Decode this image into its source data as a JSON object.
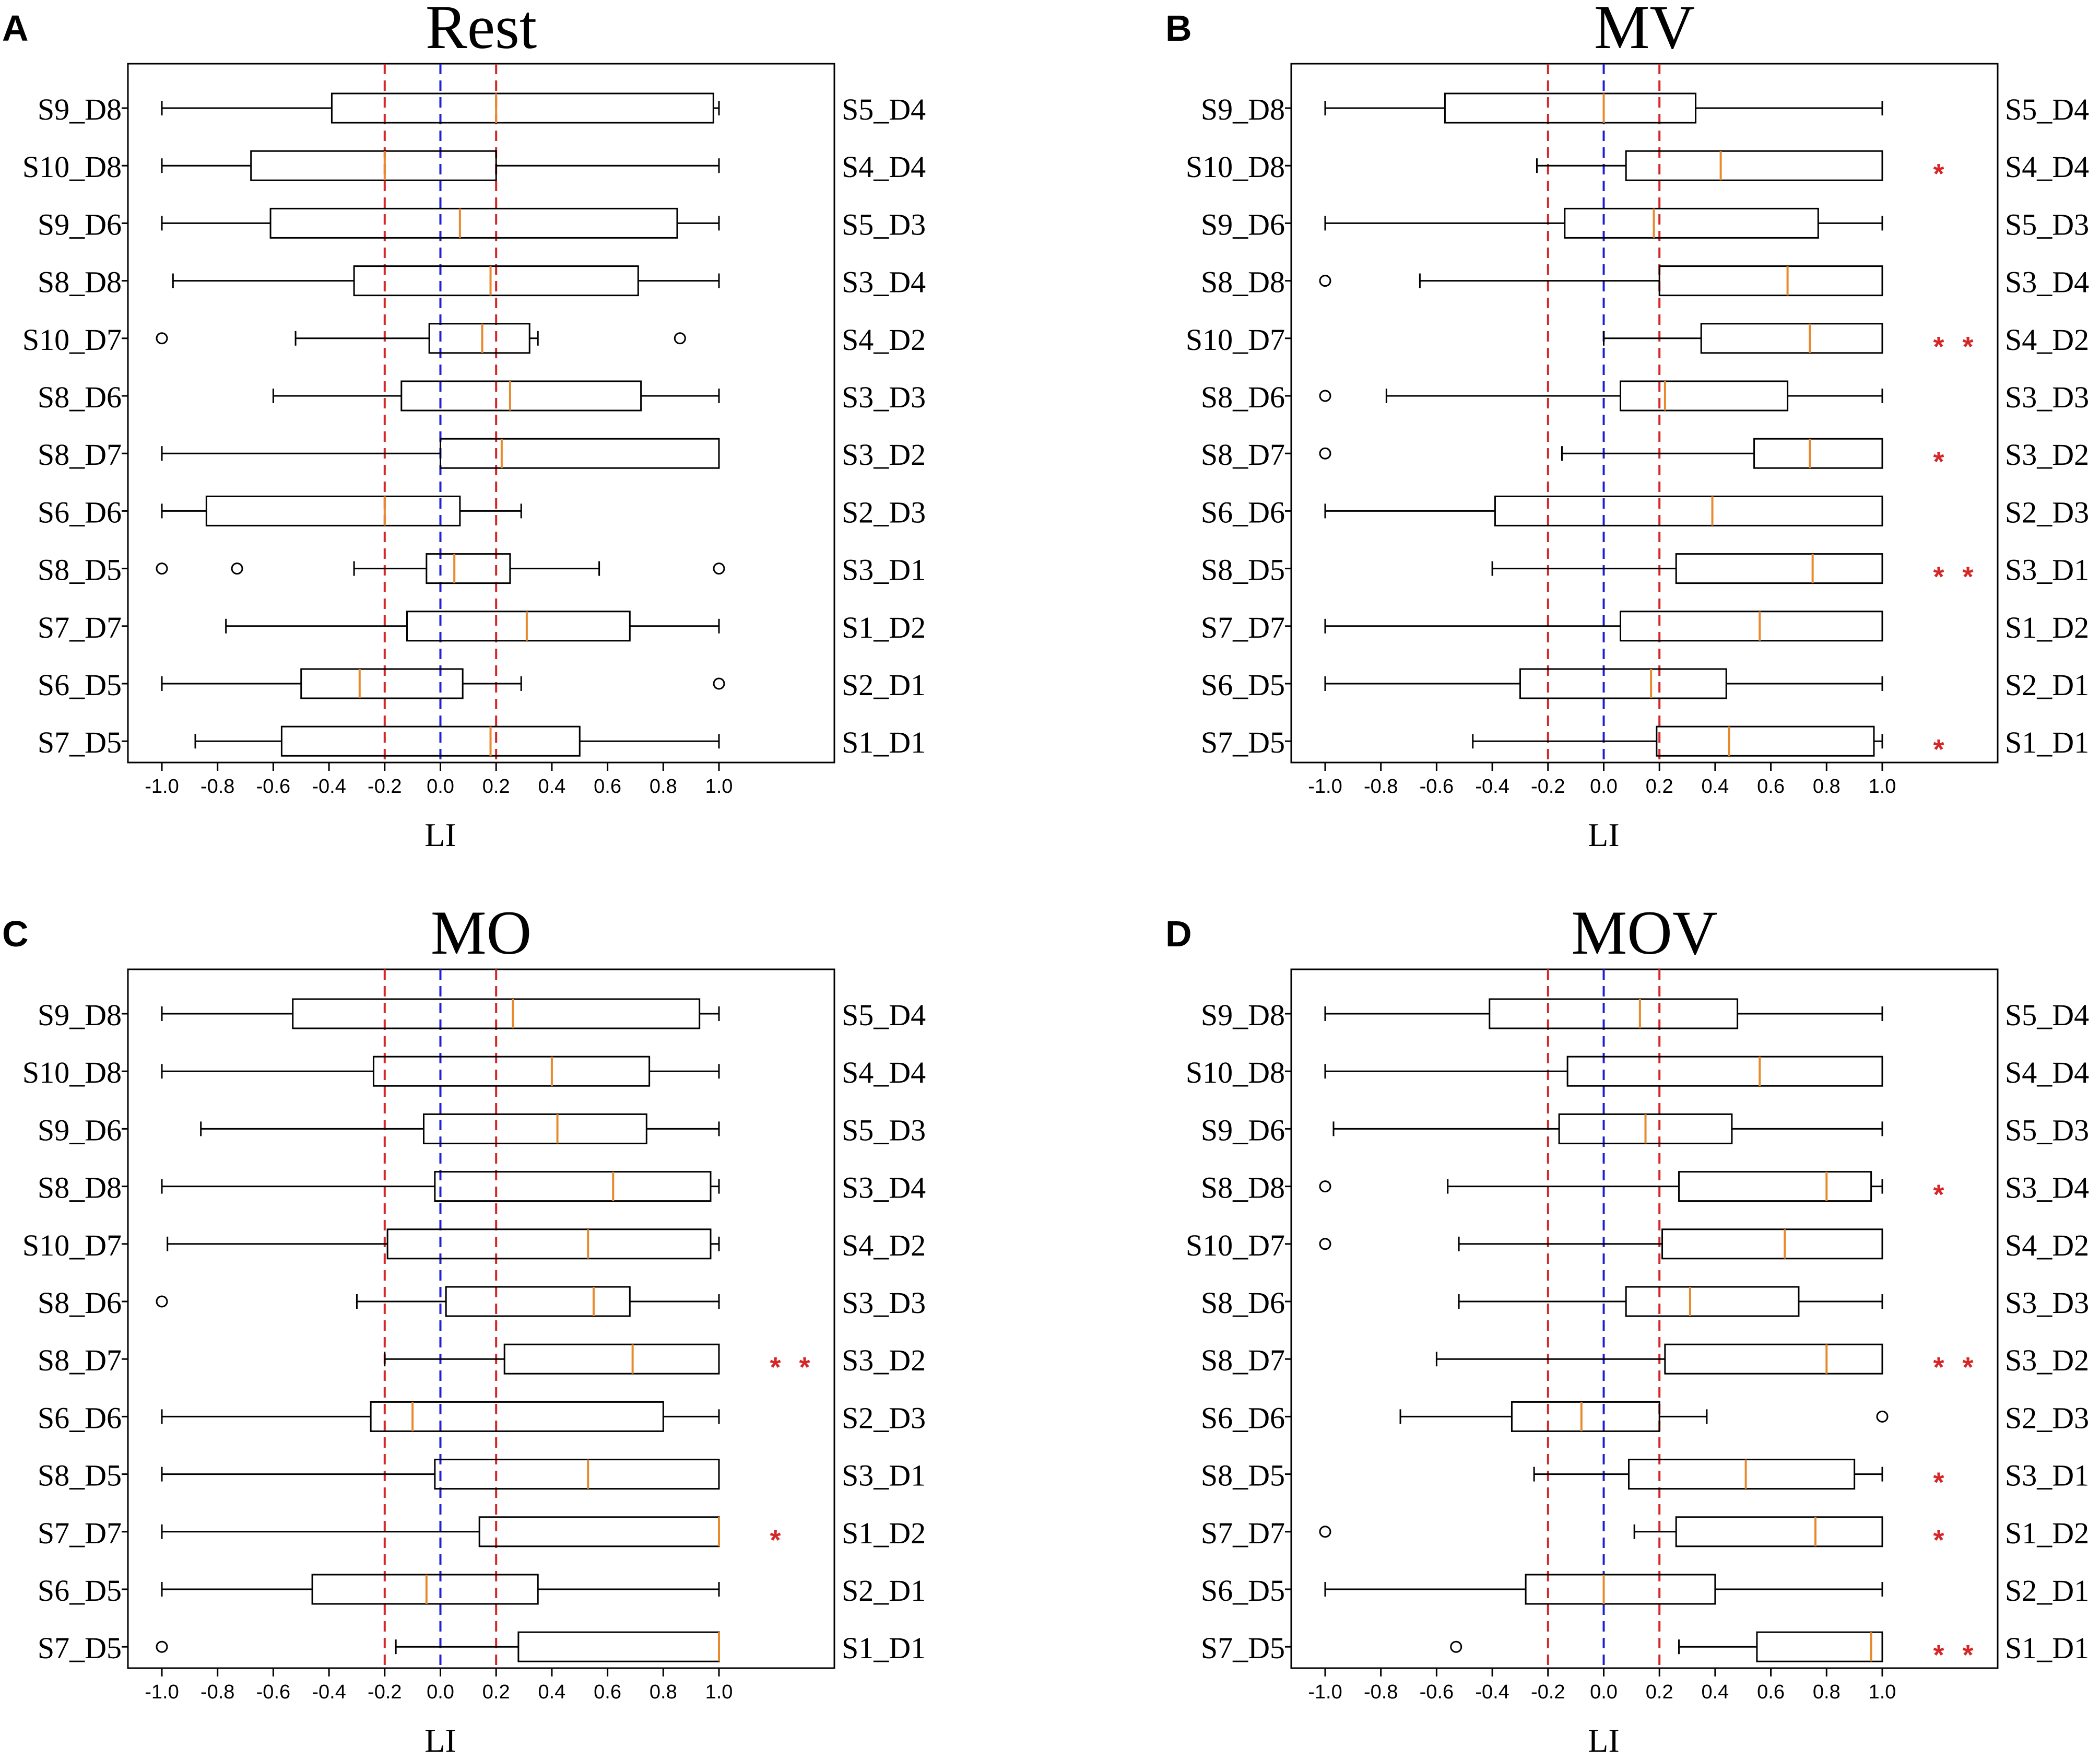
{
  "figure": {
    "colors": {
      "box": "#000000",
      "median": "#e8892b",
      "threshold_line": "#d62728",
      "zero_line": "#1f1fd6",
      "star": "#d62728"
    }
  },
  "chart_data": [
    {
      "type": "boxplot",
      "panel_label": "A",
      "title": "Rest",
      "xlabel": "LI",
      "xlim": [
        -1.0,
        1.0
      ],
      "xticks": [
        "-1.0",
        "-0.8",
        "-0.6",
        "-0.4",
        "-0.2",
        "0.0",
        "0.2",
        "0.4",
        "0.6",
        "0.8",
        "1.0"
      ],
      "reference_lines": [
        -0.2,
        0.0,
        0.2
      ],
      "channels": [
        {
          "left": "S9_D8",
          "right": "S5_D4",
          "whisker_low": -1.0,
          "q1": -0.39,
          "median": 0.2,
          "q3": 0.98,
          "whisker_high": 1.0,
          "outliers": [],
          "stars": ""
        },
        {
          "left": "S10_D8",
          "right": "S4_D4",
          "whisker_low": -1.0,
          "q1": -0.68,
          "median": -0.2,
          "q3": 0.2,
          "whisker_high": 1.0,
          "outliers": [],
          "stars": ""
        },
        {
          "left": "S9_D6",
          "right": "S5_D3",
          "whisker_low": -1.0,
          "q1": -0.61,
          "median": 0.07,
          "q3": 0.85,
          "whisker_high": 1.0,
          "outliers": [],
          "stars": ""
        },
        {
          "left": "S8_D8",
          "right": "S3_D4",
          "whisker_low": -0.96,
          "q1": -0.31,
          "median": 0.18,
          "q3": 0.71,
          "whisker_high": 1.0,
          "outliers": [],
          "stars": ""
        },
        {
          "left": "S10_D7",
          "right": "S4_D2",
          "whisker_low": -0.52,
          "q1": -0.04,
          "median": 0.15,
          "q3": 0.32,
          "whisker_high": 0.35,
          "outliers": [
            -1.0,
            0.86
          ],
          "stars": ""
        },
        {
          "left": "S8_D6",
          "right": "S3_D3",
          "whisker_low": -0.6,
          "q1": -0.14,
          "median": 0.25,
          "q3": 0.72,
          "whisker_high": 1.0,
          "outliers": [],
          "stars": ""
        },
        {
          "left": "S8_D7",
          "right": "S3_D2",
          "whisker_low": -1.0,
          "q1": 0.0,
          "median": 0.22,
          "q3": 1.0,
          "whisker_high": 1.0,
          "outliers": [],
          "stars": ""
        },
        {
          "left": "S6_D6",
          "right": "S2_D3",
          "whisker_low": -1.0,
          "q1": -0.84,
          "median": -0.2,
          "q3": 0.07,
          "whisker_high": 0.29,
          "outliers": [],
          "stars": ""
        },
        {
          "left": "S8_D5",
          "right": "S3_D1",
          "whisker_low": -0.31,
          "q1": -0.05,
          "median": 0.05,
          "q3": 0.25,
          "whisker_high": 0.57,
          "outliers": [
            -1.0,
            -0.73,
            1.0
          ],
          "stars": ""
        },
        {
          "left": "S7_D7",
          "right": "S1_D2",
          "whisker_low": -0.77,
          "q1": -0.12,
          "median": 0.31,
          "q3": 0.68,
          "whisker_high": 1.0,
          "outliers": [],
          "stars": ""
        },
        {
          "left": "S6_D5",
          "right": "S2_D1",
          "whisker_low": -1.0,
          "q1": -0.5,
          "median": -0.29,
          "q3": 0.08,
          "whisker_high": 0.29,
          "outliers": [
            1.0
          ],
          "stars": ""
        },
        {
          "left": "S7_D5",
          "right": "S1_D1",
          "whisker_low": -0.88,
          "q1": -0.57,
          "median": 0.18,
          "q3": 0.5,
          "whisker_high": 1.0,
          "outliers": [],
          "stars": ""
        }
      ]
    },
    {
      "type": "boxplot",
      "panel_label": "B",
      "title": "MV",
      "xlabel": "LI",
      "xlim": [
        -1.0,
        1.0
      ],
      "xticks": [
        "-1.0",
        "-0.8",
        "-0.6",
        "-0.4",
        "-0.2",
        "0.0",
        "0.2",
        "0.4",
        "0.6",
        "0.8",
        "1.0"
      ],
      "reference_lines": [
        -0.2,
        0.0,
        0.2
      ],
      "channels": [
        {
          "left": "S9_D8",
          "right": "S5_D4",
          "whisker_low": -1.0,
          "q1": -0.57,
          "median": 0.0,
          "q3": 0.33,
          "whisker_high": 1.0,
          "outliers": [],
          "stars": ""
        },
        {
          "left": "S10_D8",
          "right": "S4_D4",
          "whisker_low": -0.24,
          "q1": 0.08,
          "median": 0.42,
          "q3": 1.0,
          "whisker_high": 1.0,
          "outliers": [],
          "stars": "*"
        },
        {
          "left": "S9_D6",
          "right": "S5_D3",
          "whisker_low": -1.0,
          "q1": -0.14,
          "median": 0.18,
          "q3": 0.77,
          "whisker_high": 1.0,
          "outliers": [],
          "stars": ""
        },
        {
          "left": "S8_D8",
          "right": "S3_D4",
          "whisker_low": -0.66,
          "q1": 0.2,
          "median": 0.66,
          "q3": 1.0,
          "whisker_high": 1.0,
          "outliers": [
            -1.0
          ],
          "stars": ""
        },
        {
          "left": "S10_D7",
          "right": "S4_D2",
          "whisker_low": 0.0,
          "q1": 0.35,
          "median": 0.74,
          "q3": 1.0,
          "whisker_high": 1.0,
          "outliers": [],
          "stars": "**"
        },
        {
          "left": "S8_D6",
          "right": "S3_D3",
          "whisker_low": -0.78,
          "q1": 0.06,
          "median": 0.22,
          "q3": 0.66,
          "whisker_high": 1.0,
          "outliers": [
            -1.0
          ],
          "stars": ""
        },
        {
          "left": "S8_D7",
          "right": "S3_D2",
          "whisker_low": -0.15,
          "q1": 0.54,
          "median": 0.74,
          "q3": 1.0,
          "whisker_high": 1.0,
          "outliers": [
            -1.0
          ],
          "stars": "*"
        },
        {
          "left": "S6_D6",
          "right": "S2_D3",
          "whisker_low": -1.0,
          "q1": -0.39,
          "median": 0.39,
          "q3": 1.0,
          "whisker_high": 1.0,
          "outliers": [],
          "stars": ""
        },
        {
          "left": "S8_D5",
          "right": "S3_D1",
          "whisker_low": -0.4,
          "q1": 0.26,
          "median": 0.75,
          "q3": 1.0,
          "whisker_high": 1.0,
          "outliers": [],
          "stars": "**"
        },
        {
          "left": "S7_D7",
          "right": "S1_D2",
          "whisker_low": -1.0,
          "q1": 0.06,
          "median": 0.56,
          "q3": 1.0,
          "whisker_high": 1.0,
          "outliers": [],
          "stars": ""
        },
        {
          "left": "S6_D5",
          "right": "S2_D1",
          "whisker_low": -1.0,
          "q1": -0.3,
          "median": 0.17,
          "q3": 0.44,
          "whisker_high": 1.0,
          "outliers": [],
          "stars": ""
        },
        {
          "left": "S7_D5",
          "right": "S1_D1",
          "whisker_low": -0.47,
          "q1": 0.19,
          "median": 0.45,
          "q3": 0.97,
          "whisker_high": 1.0,
          "outliers": [],
          "stars": "*"
        }
      ]
    },
    {
      "type": "boxplot",
      "panel_label": "C",
      "title": "MO",
      "xlabel": "LI",
      "xlim": [
        -1.0,
        1.0
      ],
      "xticks": [
        "-1.0",
        "-0.8",
        "-0.6",
        "-0.4",
        "-0.2",
        "0.0",
        "0.2",
        "0.4",
        "0.6",
        "0.8",
        "1.0"
      ],
      "reference_lines": [
        -0.2,
        0.0,
        0.2
      ],
      "channels": [
        {
          "left": "S9_D8",
          "right": "S5_D4",
          "whisker_low": -1.0,
          "q1": -0.53,
          "median": 0.26,
          "q3": 0.93,
          "whisker_high": 1.0,
          "outliers": [],
          "stars": ""
        },
        {
          "left": "S10_D8",
          "right": "S4_D4",
          "whisker_low": -1.0,
          "q1": -0.24,
          "median": 0.4,
          "q3": 0.75,
          "whisker_high": 1.0,
          "outliers": [],
          "stars": ""
        },
        {
          "left": "S9_D6",
          "right": "S5_D3",
          "whisker_low": -0.86,
          "q1": -0.06,
          "median": 0.42,
          "q3": 0.74,
          "whisker_high": 1.0,
          "outliers": [],
          "stars": ""
        },
        {
          "left": "S8_D8",
          "right": "S3_D4",
          "whisker_low": -1.0,
          "q1": -0.02,
          "median": 0.62,
          "q3": 0.97,
          "whisker_high": 1.0,
          "outliers": [],
          "stars": ""
        },
        {
          "left": "S10_D7",
          "right": "S4_D2",
          "whisker_low": -0.98,
          "q1": -0.19,
          "median": 0.53,
          "q3": 0.97,
          "whisker_high": 1.0,
          "outliers": [],
          "stars": ""
        },
        {
          "left": "S8_D6",
          "right": "S3_D3",
          "whisker_low": -0.3,
          "q1": 0.02,
          "median": 0.55,
          "q3": 0.68,
          "whisker_high": 1.0,
          "outliers": [
            -1.0
          ],
          "stars": ""
        },
        {
          "left": "S8_D7",
          "right": "S3_D2",
          "whisker_low": -0.2,
          "q1": 0.23,
          "median": 0.69,
          "q3": 1.0,
          "whisker_high": 1.0,
          "outliers": [],
          "stars": "**"
        },
        {
          "left": "S6_D6",
          "right": "S2_D3",
          "whisker_low": -1.0,
          "q1": -0.25,
          "median": -0.1,
          "q3": 0.8,
          "whisker_high": 1.0,
          "outliers": [],
          "stars": ""
        },
        {
          "left": "S8_D5",
          "right": "S3_D1",
          "whisker_low": -1.0,
          "q1": -0.02,
          "median": 0.53,
          "q3": 1.0,
          "whisker_high": 1.0,
          "outliers": [],
          "stars": ""
        },
        {
          "left": "S7_D7",
          "right": "S1_D2",
          "whisker_low": -1.0,
          "q1": 0.14,
          "median": 1.0,
          "q3": 1.0,
          "whisker_high": 1.0,
          "outliers": [],
          "stars": "*"
        },
        {
          "left": "S6_D5",
          "right": "S2_D1",
          "whisker_low": -1.0,
          "q1": -0.46,
          "median": -0.05,
          "q3": 0.35,
          "whisker_high": 1.0,
          "outliers": [],
          "stars": ""
        },
        {
          "left": "S7_D5",
          "right": "S1_D1",
          "whisker_low": -0.16,
          "q1": 0.28,
          "median": 1.0,
          "q3": 1.0,
          "whisker_high": 1.0,
          "outliers": [
            -1.0
          ],
          "stars": ""
        }
      ]
    },
    {
      "type": "boxplot",
      "panel_label": "D",
      "title": "MOV",
      "xlabel": "LI",
      "xlim": [
        -1.0,
        1.0
      ],
      "xticks": [
        "-1.0",
        "-0.8",
        "-0.6",
        "-0.4",
        "-0.2",
        "0.0",
        "0.2",
        "0.4",
        "0.6",
        "0.8",
        "1.0"
      ],
      "reference_lines": [
        -0.2,
        0.0,
        0.2
      ],
      "channels": [
        {
          "left": "S9_D8",
          "right": "S5_D4",
          "whisker_low": -1.0,
          "q1": -0.41,
          "median": 0.13,
          "q3": 0.48,
          "whisker_high": 1.0,
          "outliers": [],
          "stars": ""
        },
        {
          "left": "S10_D8",
          "right": "S4_D4",
          "whisker_low": -1.0,
          "q1": -0.13,
          "median": 0.56,
          "q3": 1.0,
          "whisker_high": 1.0,
          "outliers": [],
          "stars": ""
        },
        {
          "left": "S9_D6",
          "right": "S5_D3",
          "whisker_low": -0.97,
          "q1": -0.16,
          "median": 0.15,
          "q3": 0.46,
          "whisker_high": 1.0,
          "outliers": [],
          "stars": ""
        },
        {
          "left": "S8_D8",
          "right": "S3_D4",
          "whisker_low": -0.56,
          "q1": 0.27,
          "median": 0.8,
          "q3": 0.96,
          "whisker_high": 1.0,
          "outliers": [
            -1.0
          ],
          "stars": "*"
        },
        {
          "left": "S10_D7",
          "right": "S4_D2",
          "whisker_low": -0.52,
          "q1": 0.21,
          "median": 0.65,
          "q3": 1.0,
          "whisker_high": 1.0,
          "outliers": [
            -1.0
          ],
          "stars": ""
        },
        {
          "left": "S8_D6",
          "right": "S3_D3",
          "whisker_low": -0.52,
          "q1": 0.08,
          "median": 0.31,
          "q3": 0.7,
          "whisker_high": 1.0,
          "outliers": [],
          "stars": ""
        },
        {
          "left": "S8_D7",
          "right": "S3_D2",
          "whisker_low": -0.6,
          "q1": 0.22,
          "median": 0.8,
          "q3": 1.0,
          "whisker_high": 1.0,
          "outliers": [],
          "stars": "**"
        },
        {
          "left": "S6_D6",
          "right": "S2_D3",
          "whisker_low": -0.73,
          "q1": -0.33,
          "median": -0.08,
          "q3": 0.2,
          "whisker_high": 0.37,
          "outliers": [
            1.0
          ],
          "stars": ""
        },
        {
          "left": "S8_D5",
          "right": "S3_D1",
          "whisker_low": -0.25,
          "q1": 0.09,
          "median": 0.51,
          "q3": 0.9,
          "whisker_high": 1.0,
          "outliers": [],
          "stars": "*"
        },
        {
          "left": "S7_D7",
          "right": "S1_D2",
          "whisker_low": 0.11,
          "q1": 0.26,
          "median": 0.76,
          "q3": 1.0,
          "whisker_high": 1.0,
          "outliers": [
            -1.0
          ],
          "stars": "*"
        },
        {
          "left": "S6_D5",
          "right": "S2_D1",
          "whisker_low": -1.0,
          "q1": -0.28,
          "median": 0.0,
          "q3": 0.4,
          "whisker_high": 1.0,
          "outliers": [],
          "stars": ""
        },
        {
          "left": "S7_D5",
          "right": "S1_D1",
          "whisker_low": 0.27,
          "q1": 0.55,
          "median": 0.96,
          "q3": 1.0,
          "whisker_high": 1.0,
          "outliers": [
            -0.53
          ],
          "stars": "**"
        }
      ]
    }
  ]
}
